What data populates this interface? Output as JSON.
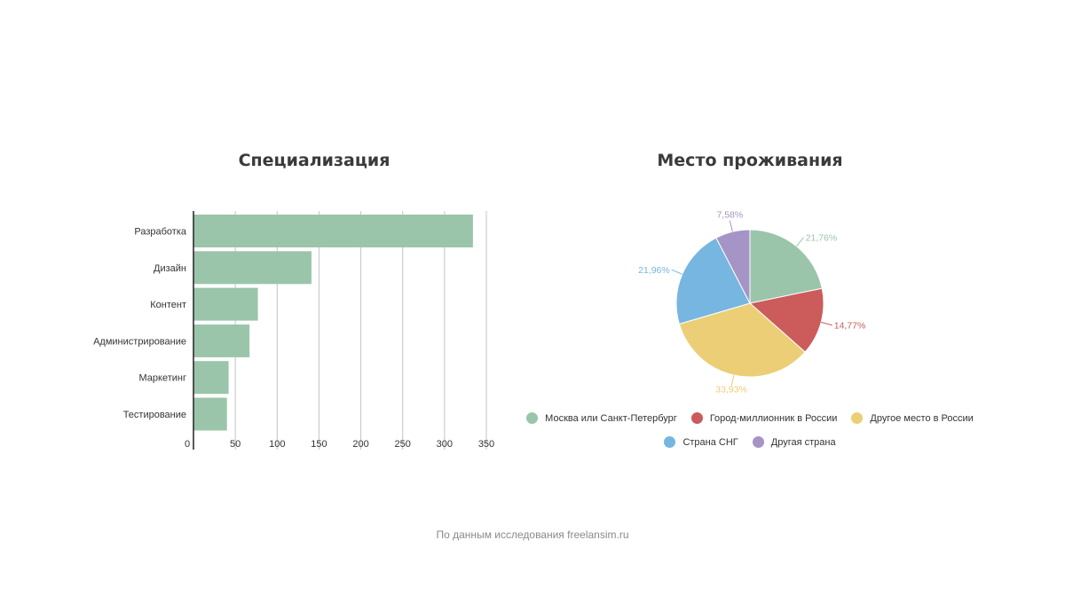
{
  "charts": {
    "bar": {
      "title": "Специализация"
    },
    "pie": {
      "title": "Место проживания"
    }
  },
  "footer": {
    "text": "По данным исследования freelansim.ru"
  },
  "chart_data": [
    {
      "type": "bar",
      "orientation": "horizontal",
      "title": "Специализация",
      "categories": [
        "Разработка",
        "Дизайн",
        "Контент",
        "Администрирование",
        "Маркетинг",
        "Тестирование"
      ],
      "values": [
        334,
        141,
        77,
        67,
        42,
        40
      ],
      "xlim": [
        0,
        350
      ],
      "ticks": [
        0,
        50,
        100,
        150,
        200,
        250,
        300,
        350
      ],
      "grid": true,
      "color": "#9bc5aa"
    },
    {
      "type": "pie",
      "title": "Место проживания",
      "legend_position": "bottom",
      "slices": [
        {
          "label": "Москва или Санкт-Петербург",
          "value": 21.76,
          "display": "21,76%",
          "color": "#9bc5aa"
        },
        {
          "label": "Город-миллионник в России",
          "value": 14.77,
          "display": "14,77%",
          "color": "#cc5b5b"
        },
        {
          "label": "Другое место в России",
          "value": 33.93,
          "display": "33,93%",
          "color": "#ebce76"
        },
        {
          "label": "Страна СНГ",
          "value": 21.96,
          "display": "21,96%",
          "color": "#76b6e0"
        },
        {
          "label": "Другая страна",
          "value": 7.58,
          "display": "7,58%",
          "color": "#a594c6"
        }
      ],
      "legend_rows": [
        [
          "Москва или Санкт-Петербург",
          "Город-миллионник в России",
          "Другое место в России"
        ],
        [
          "Страна СНГ",
          "Другая страна"
        ]
      ]
    }
  ]
}
